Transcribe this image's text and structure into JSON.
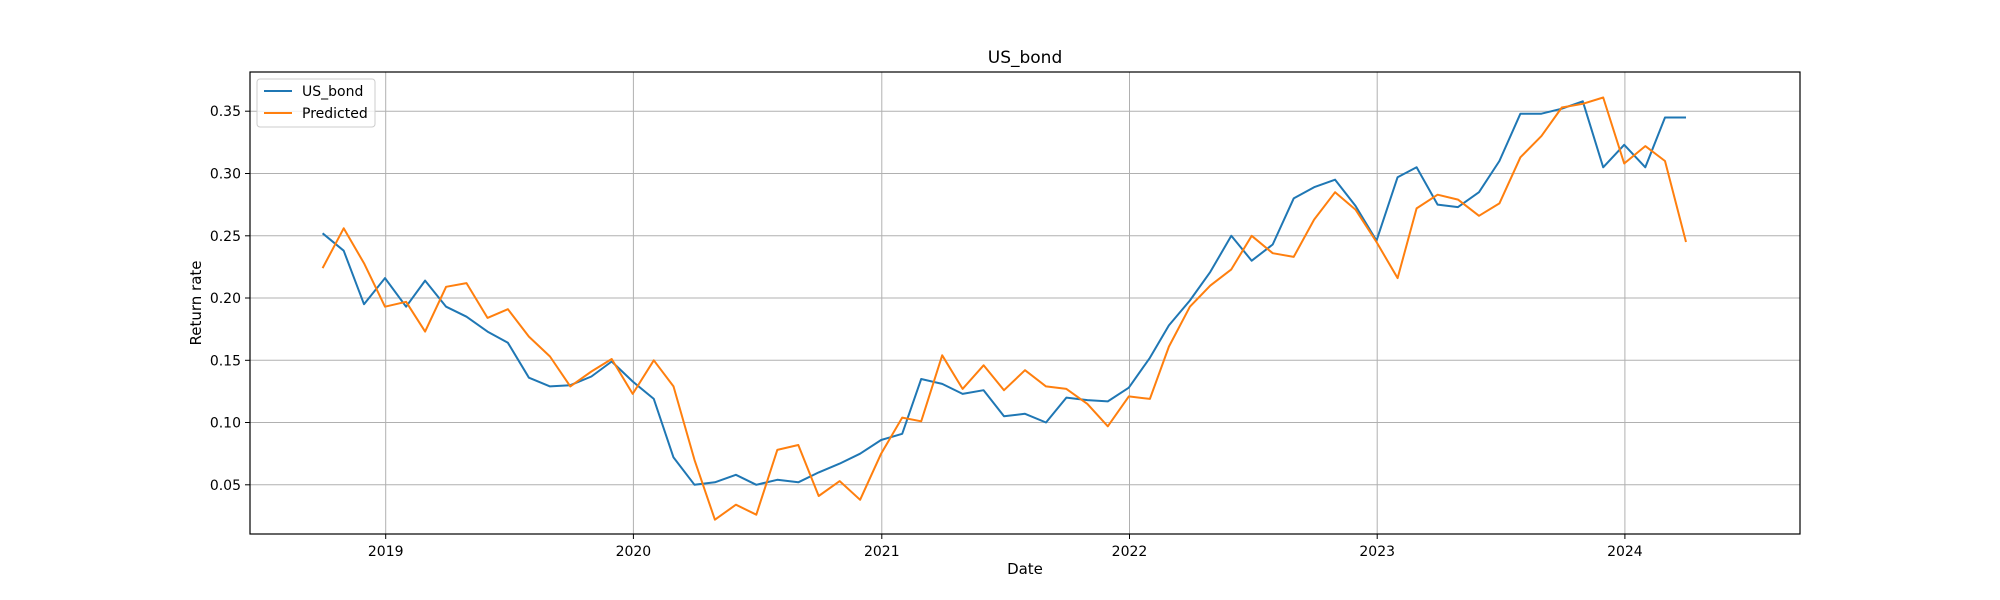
{
  "chart_data": {
    "type": "line",
    "title": "US_bond",
    "xlabel": "Date",
    "ylabel": "Return rate",
    "x_axis_type": "date",
    "xlim": [
      "2018-06-15",
      "2024-09-15"
    ],
    "ylim": [
      0.0105,
      0.3815
    ],
    "x_ticks": [
      "2019-01-01",
      "2020-01-01",
      "2021-01-01",
      "2022-01-01",
      "2023-01-01",
      "2024-01-01"
    ],
    "x_tick_labels": [
      "2019",
      "2020",
      "2021",
      "2022",
      "2023",
      "2024"
    ],
    "y_ticks": [
      0.05,
      0.1,
      0.15,
      0.2,
      0.25,
      0.3,
      0.35
    ],
    "y_tick_labels": [
      "0.05",
      "0.10",
      "0.15",
      "0.20",
      "0.25",
      "0.30",
      "0.35"
    ],
    "grid": true,
    "legend_position": "top-left",
    "x": [
      "2018-09-30",
      "2018-10-31",
      "2018-11-30",
      "2018-12-31",
      "2019-01-31",
      "2019-02-28",
      "2019-03-31",
      "2019-04-30",
      "2019-05-31",
      "2019-06-30",
      "2019-07-31",
      "2019-08-31",
      "2019-09-30",
      "2019-10-31",
      "2019-11-30",
      "2019-12-31",
      "2020-01-31",
      "2020-02-29",
      "2020-03-31",
      "2020-04-30",
      "2020-05-31",
      "2020-06-30",
      "2020-07-31",
      "2020-08-31",
      "2020-09-30",
      "2020-10-31",
      "2020-11-30",
      "2020-12-31",
      "2021-01-31",
      "2021-02-28",
      "2021-03-31",
      "2021-04-30",
      "2021-05-31",
      "2021-06-30",
      "2021-07-31",
      "2021-08-31",
      "2021-09-30",
      "2021-10-31",
      "2021-11-30",
      "2021-12-31",
      "2022-01-31",
      "2022-02-28",
      "2022-03-31",
      "2022-04-30",
      "2022-05-31",
      "2022-06-30",
      "2022-07-31",
      "2022-08-31",
      "2022-09-30",
      "2022-10-31",
      "2022-11-30",
      "2022-12-31",
      "2023-01-31",
      "2023-02-28",
      "2023-03-31",
      "2023-04-30",
      "2023-05-31",
      "2023-06-30",
      "2023-07-31",
      "2023-08-31",
      "2023-09-30",
      "2023-10-31",
      "2023-11-30",
      "2023-12-31",
      "2024-01-31",
      "2024-02-29",
      "2024-03-31"
    ],
    "series": [
      {
        "name": "US_bond",
        "color": "#1f77b4",
        "values": [
          0.252,
          0.238,
          0.195,
          0.216,
          0.193,
          0.214,
          0.193,
          0.185,
          0.173,
          0.164,
          0.136,
          0.129,
          0.13,
          0.137,
          0.149,
          0.133,
          0.119,
          0.072,
          0.05,
          0.052,
          0.058,
          0.05,
          0.054,
          0.052,
          0.06,
          0.067,
          0.075,
          0.086,
          0.091,
          0.135,
          0.131,
          0.123,
          0.126,
          0.105,
          0.107,
          0.1,
          0.12,
          0.118,
          0.117,
          0.128,
          0.152,
          0.178,
          0.198,
          0.221,
          0.25,
          0.23,
          0.243,
          0.28,
          0.289,
          0.295,
          0.274,
          0.246,
          0.297,
          0.305,
          0.275,
          0.273,
          0.285,
          0.31,
          0.348,
          0.348,
          0.352,
          0.358,
          0.305,
          0.323,
          0.305,
          0.345,
          0.345
        ]
      },
      {
        "name": "Predicted",
        "color": "#ff7f0e",
        "values": [
          0.224,
          0.256,
          0.228,
          0.193,
          0.197,
          0.173,
          0.209,
          0.212,
          0.184,
          0.191,
          0.169,
          0.153,
          0.129,
          0.141,
          0.151,
          0.123,
          0.15,
          0.129,
          0.07,
          0.022,
          0.034,
          0.026,
          0.078,
          0.082,
          0.041,
          0.053,
          0.038,
          0.075,
          0.104,
          0.101,
          0.154,
          0.127,
          0.146,
          0.126,
          0.142,
          0.129,
          0.127,
          0.115,
          0.097,
          0.121,
          0.119,
          0.161,
          0.193,
          0.21,
          0.223,
          0.25,
          0.236,
          0.233,
          0.263,
          0.285,
          0.271,
          0.245,
          0.216,
          0.272,
          0.283,
          0.279,
          0.266,
          0.276,
          0.313,
          0.33,
          0.353,
          0.356,
          0.361,
          0.308,
          0.322,
          0.31,
          0.245
        ]
      }
    ]
  }
}
